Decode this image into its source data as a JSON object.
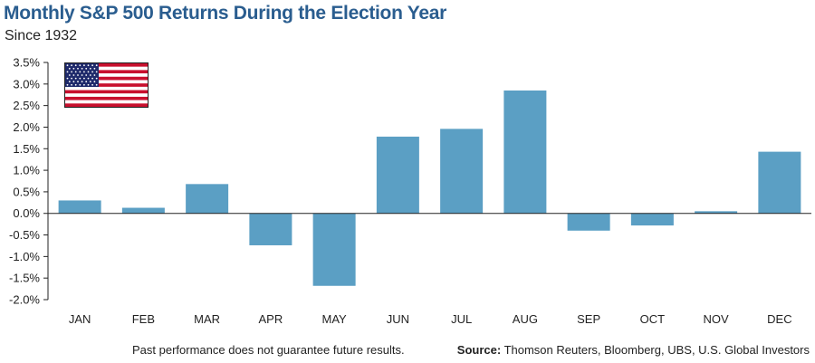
{
  "header": {
    "title": "Monthly S&P 500 Returns During the Election Year",
    "subtitle": "Since 1932"
  },
  "footer": {
    "note": "Past performance does not guarantee future results.",
    "source_label": "Source:",
    "source_text": " Thomson Reuters, Bloomberg, UBS, U.S. Global Investors"
  },
  "colors": {
    "bar": "#5b9fc4",
    "title": "#2a5d8f",
    "flag_red": "#c8102e",
    "flag_blue": "#1f2a6b"
  },
  "flag_icon": "us-flag-icon",
  "chart_data": {
    "type": "bar",
    "categories": [
      "JAN",
      "FEB",
      "MAR",
      "APR",
      "MAY",
      "JUN",
      "JUL",
      "AUG",
      "SEP",
      "OCT",
      "NOV",
      "DEC"
    ],
    "values": [
      0.3,
      0.13,
      0.68,
      -0.74,
      -1.68,
      1.78,
      1.96,
      2.85,
      -0.4,
      -0.28,
      0.05,
      1.43
    ],
    "ylim": [
      -2.0,
      3.5
    ],
    "yticks": [
      3.5,
      3.0,
      2.5,
      2.0,
      1.5,
      1.0,
      0.5,
      0.0,
      -0.5,
      -1.0,
      -1.5,
      -2.0
    ],
    "ytick_labels": [
      "3.5%",
      "3.0%",
      "2.5%",
      "2.0%",
      "1.5%",
      "1.0%",
      "0.5%",
      "0.0%",
      "-0.5%",
      "-1.0%",
      "-1.5%",
      "-2.0%"
    ],
    "title": "Monthly S&P 500 Returns During the Election Year",
    "subtitle": "Since 1932",
    "xlabel": "",
    "ylabel": "",
    "grid": false,
    "legend": "none"
  }
}
